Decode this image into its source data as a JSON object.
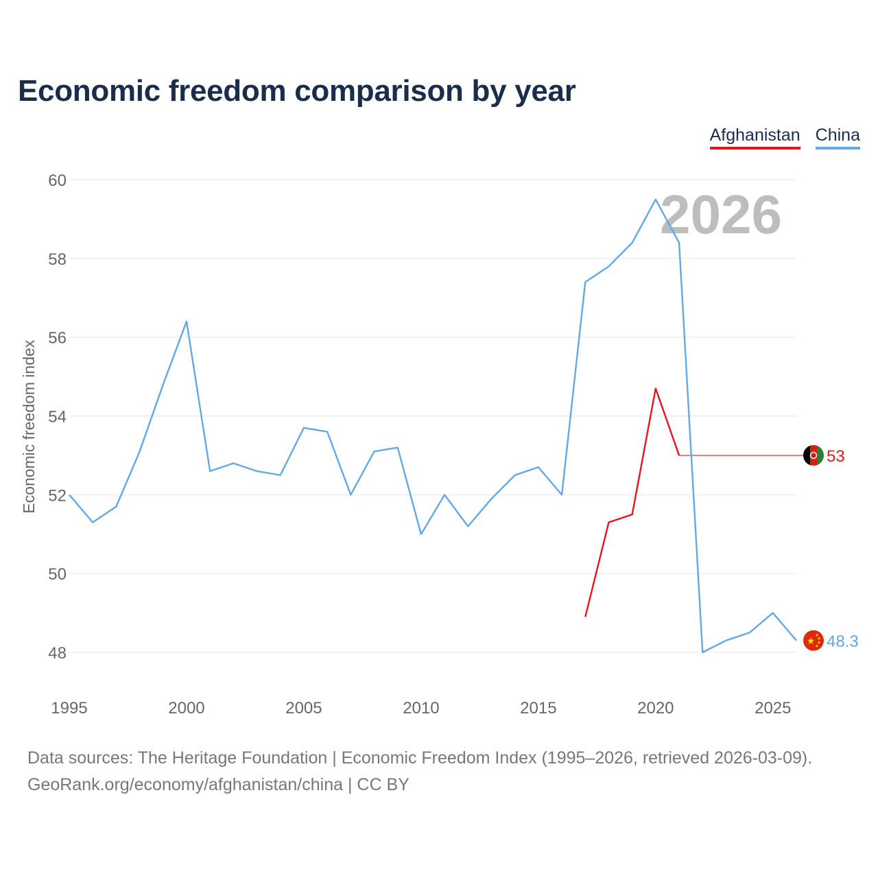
{
  "title": "Economic freedom comparison by year",
  "legend": [
    {
      "label": "Afghanistan",
      "color": "#e8141c"
    },
    {
      "label": "China",
      "color": "#62a8e5"
    }
  ],
  "year_watermark": "2026",
  "chart_data": {
    "type": "line",
    "title": "Economic freedom comparison by year",
    "xlabel": "",
    "ylabel": "Economic freedom index",
    "xlim": [
      1995,
      2026
    ],
    "ylim": [
      47,
      60
    ],
    "x_ticks": [
      1995,
      2000,
      2005,
      2010,
      2015,
      2020,
      2025
    ],
    "y_ticks": [
      48,
      50,
      52,
      54,
      56,
      58,
      60
    ],
    "grid": true,
    "legend_position": "top-right",
    "series": [
      {
        "name": "Afghanistan",
        "color": "#e8141c",
        "end_label": "53",
        "flag_icon": "afghanistan-flag-icon",
        "points": [
          [
            2017,
            48.9
          ],
          [
            2018,
            51.3
          ],
          [
            2019,
            51.5
          ],
          [
            2020,
            54.7
          ],
          [
            2021,
            53.0
          ],
          [
            2026,
            53.0
          ]
        ]
      },
      {
        "name": "China",
        "color": "#62a8e5",
        "end_label": "48.3",
        "flag_icon": "china-flag-icon",
        "points": [
          [
            1995,
            52.0
          ],
          [
            1996,
            51.3
          ],
          [
            1997,
            51.7
          ],
          [
            1998,
            53.1
          ],
          [
            1999,
            54.8
          ],
          [
            2000,
            56.4
          ],
          [
            2001,
            52.6
          ],
          [
            2002,
            52.8
          ],
          [
            2003,
            52.6
          ],
          [
            2004,
            52.5
          ],
          [
            2005,
            53.7
          ],
          [
            2006,
            53.6
          ],
          [
            2007,
            52.0
          ],
          [
            2008,
            53.1
          ],
          [
            2009,
            53.2
          ],
          [
            2010,
            51.0
          ],
          [
            2011,
            52.0
          ],
          [
            2012,
            51.2
          ],
          [
            2013,
            51.9
          ],
          [
            2014,
            52.5
          ],
          [
            2015,
            52.7
          ],
          [
            2016,
            52.0
          ],
          [
            2017,
            57.4
          ],
          [
            2018,
            57.8
          ],
          [
            2019,
            58.4
          ],
          [
            2020,
            59.5
          ],
          [
            2021,
            58.4
          ],
          [
            2022,
            48.0
          ],
          [
            2023,
            48.3
          ],
          [
            2024,
            48.5
          ],
          [
            2025,
            49.0
          ],
          [
            2026,
            48.3
          ]
        ]
      }
    ]
  },
  "footer": {
    "line1": "Data sources: The Heritage Foundation | Economic Freedom Index (1995–2026, retrieved 2026-03-09).",
    "line2": "GeoRank.org/economy/afghanistan/china | CC BY"
  }
}
